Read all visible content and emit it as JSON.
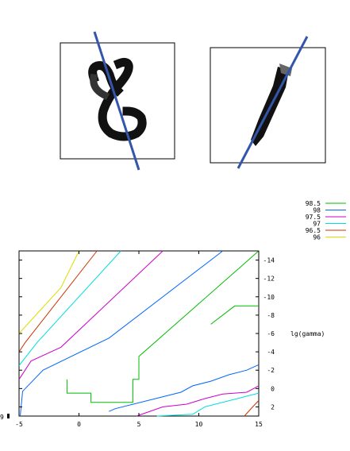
{
  "digits": [
    {
      "label": "eight",
      "name": "digit-eight-image"
    },
    {
      "label": "one",
      "name": "digit-one-image"
    }
  ],
  "chart_data": {
    "type": "contour",
    "ylabel_right": "lg(gamma)",
    "x_tick_labels": [
      "-5",
      "0",
      "5",
      "10",
      "15"
    ],
    "x_ticks": [
      -5,
      0,
      5,
      10,
      15
    ],
    "y_tick_labels": [
      "-14",
      "-12",
      "-10",
      "-8",
      "-6",
      "-4",
      "-2",
      "0",
      "2"
    ],
    "y_ticks": [
      -14,
      -12,
      -10,
      -8,
      -6,
      -4,
      -2,
      0,
      2
    ],
    "left_edge_label": "9",
    "xlim": [
      -5,
      15
    ],
    "ylim": [
      -15,
      3
    ],
    "grid": false,
    "legend_position": "top-right",
    "series": [
      {
        "name": "98.5",
        "color": "#00bb00",
        "segments": [
          [
            [
              -1,
              -1
            ],
            [
              -1,
              0.5
            ],
            [
              1,
              0.5
            ],
            [
              1,
              1.5
            ],
            [
              3,
              1.5
            ],
            [
              4.5,
              1.5
            ],
            [
              4.5,
              -1
            ],
            [
              5,
              -1
            ],
            [
              5,
              -3.5
            ],
            [
              15,
              -15
            ]
          ],
          [
            [
              11,
              -7
            ],
            [
              13,
              -9
            ],
            [
              13,
              -9
            ],
            [
              15,
              -9
            ]
          ]
        ]
      },
      {
        "name": "98",
        "color": "#0066ff",
        "segments": [
          [
            [
              -4.9,
              3
            ],
            [
              -4.7,
              0.3
            ],
            [
              -3,
              -2
            ],
            [
              2.5,
              -5.5
            ],
            [
              12,
              -15
            ]
          ],
          [
            [
              2.5,
              2.5
            ],
            [
              3,
              2.2
            ],
            [
              8.5,
              0.4
            ],
            [
              9.5,
              -0.3
            ],
            [
              11,
              -0.8
            ],
            [
              12.5,
              -1.5
            ],
            [
              14,
              -2
            ],
            [
              15,
              -2.6
            ]
          ]
        ]
      },
      {
        "name": "97.5",
        "color": "#cc00cc",
        "segments": [
          [
            [
              -5,
              -1
            ],
            [
              -4,
              -3
            ],
            [
              -1.5,
              -4.5
            ],
            [
              7,
              -15
            ]
          ],
          [
            [
              4.8,
              3
            ],
            [
              7,
              2
            ],
            [
              9,
              1.7
            ],
            [
              10.5,
              1.1
            ],
            [
              12,
              0.6
            ],
            [
              14,
              0.4
            ],
            [
              15,
              -0.3
            ]
          ]
        ]
      },
      {
        "name": "97",
        "color": "#00dddd",
        "segments": [
          [
            [
              -5,
              -2.5
            ],
            [
              -3.5,
              -5
            ],
            [
              3.5,
              -15
            ]
          ],
          [
            [
              6.5,
              3
            ],
            [
              9.5,
              2.8
            ],
            [
              10.5,
              2
            ],
            [
              13.5,
              1
            ],
            [
              15,
              0.5
            ]
          ]
        ]
      },
      {
        "name": "96.5",
        "color": "#cc3300",
        "segments": [
          [
            [
              -5,
              -4
            ],
            [
              -4.5,
              -5
            ],
            [
              1.5,
              -15
            ]
          ],
          [
            [
              13.8,
              3
            ],
            [
              14.5,
              2
            ],
            [
              15,
              1.3
            ]
          ]
        ]
      },
      {
        "name": "96",
        "color": "#dddd00",
        "segments": [
          [
            [
              -5,
              -6
            ],
            [
              -1.5,
              -11
            ],
            [
              0,
              -15
            ]
          ]
        ]
      }
    ]
  }
}
